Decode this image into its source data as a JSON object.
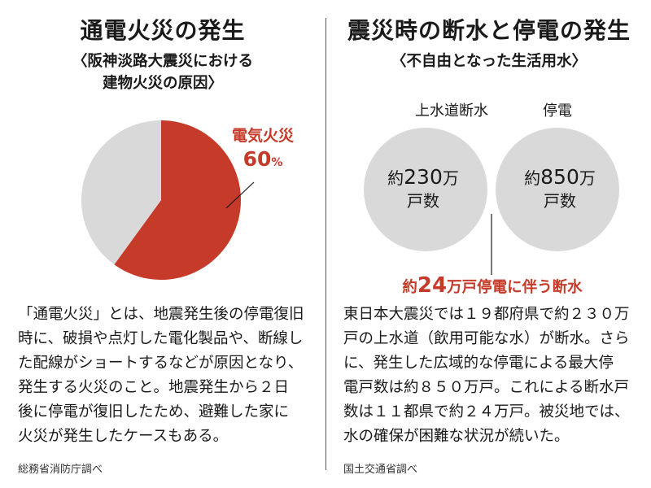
{
  "left": {
    "title": "通電火災の発生",
    "subtitle_lines": [
      "〈阪神淡路大震災における",
      "建物火災の原因〉"
    ],
    "body_lines": [
      "「通電火災」とは、地震発生後の停電復旧",
      "時に、破損や点灯した電化製品や、断線し",
      "た配線がショートするなどが原因となり、",
      "発生する火災のこと。地震発生から２日",
      "後に停電が復旧したため、避難した家に",
      "火災が発生したケースもある。"
    ],
    "source": "総務省消防庁調べ"
  },
  "right": {
    "title": "震災時の断水と停電の発生",
    "subtitle": "〈不自由となった生活用水〉",
    "body_lines": [
      "東日本大震災では１９都府県で約２３０万",
      "戸の上水道（飲用可能な水）が断水。さら",
      "に、発生した広域的な停電による最大停",
      "電戸数は約８５０万戸。これによる断水戸",
      "数は１１都県で約２４万戸。被災地では、",
      "水の確保が困難な状況が続いた。"
    ],
    "source": "国土交通省調べ"
  },
  "chart_data": [
    {
      "type": "pie",
      "title": "通電火災の発生",
      "subtitle": "〈阪神淡路大震災における建物火災の原因〉",
      "slices": [
        {
          "name": "電気火災",
          "value": 60,
          "value_label": "60",
          "unit": "%",
          "color": "#c53a29"
        },
        {
          "name": "",
          "value": 40,
          "color": "#d9d9d9"
        }
      ]
    },
    {
      "type": "venn",
      "title": "震災時の断水と停電の発生",
      "subtitle": "〈不自由となった生活用水〉",
      "sets": [
        {
          "name": "上水道断水",
          "value": 230,
          "inner_prefix": "約",
          "inner_value": "230",
          "inner_unit": "万",
          "inner_line2": "戸数",
          "color": "#d9d9d9"
        },
        {
          "name": "停電",
          "value": 850,
          "inner_prefix": "約",
          "inner_value": "850",
          "inner_unit": "万",
          "inner_line2": "戸数",
          "color": "#d9d9d9"
        }
      ],
      "intersection": {
        "value": 24,
        "label_prefix": "約",
        "label_value": "24",
        "label_suffix": "万戸停電に伴う断水",
        "color": "#c53a29"
      }
    }
  ]
}
